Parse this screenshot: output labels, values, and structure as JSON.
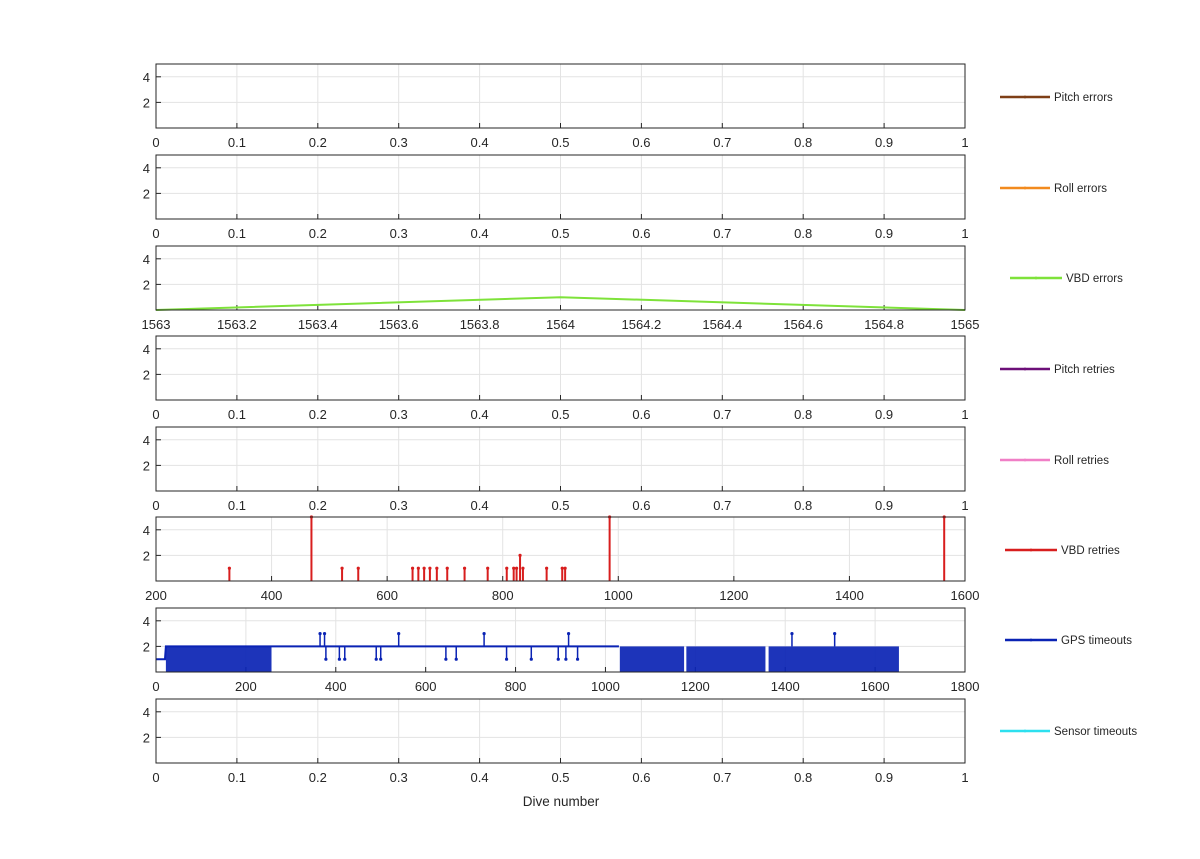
{
  "figure": {
    "xlabel": "Dive number",
    "y_ticks": [
      2,
      4
    ]
  },
  "chart_data": [
    {
      "type": "line",
      "legend": "Pitch errors",
      "color": "#7e3f17",
      "xlim": [
        0,
        1
      ],
      "x_ticks": [
        "0",
        "0.1",
        "0.2",
        "0.3",
        "0.4",
        "0.5",
        "0.6",
        "0.7",
        "0.8",
        "0.9",
        "1"
      ],
      "ylim": [
        0,
        5
      ],
      "y_ticks": [
        "2",
        "4"
      ],
      "series": []
    },
    {
      "type": "line",
      "legend": "Roll errors",
      "color": "#f28a1e",
      "xlim": [
        0,
        1
      ],
      "x_ticks": [
        "0",
        "0.1",
        "0.2",
        "0.3",
        "0.4",
        "0.5",
        "0.6",
        "0.7",
        "0.8",
        "0.9",
        "1"
      ],
      "ylim": [
        0,
        5
      ],
      "y_ticks": [
        "2",
        "4"
      ],
      "series": []
    },
    {
      "type": "line",
      "legend": "VBD errors",
      "color": "#7ee23a",
      "xlim": [
        1563,
        1565
      ],
      "x_ticks": [
        "1563",
        "1563.2",
        "1563.4",
        "1563.6",
        "1563.8",
        "1564",
        "1564.2",
        "1564.4",
        "1564.6",
        "1564.8",
        "1565"
      ],
      "ylim": [
        0,
        5
      ],
      "y_ticks": [
        "2",
        "4"
      ],
      "series": [
        {
          "x": [
            1563,
            1564,
            1565
          ],
          "y": [
            0,
            1,
            0
          ]
        }
      ]
    },
    {
      "type": "line",
      "legend": "Pitch retries",
      "color": "#6c0f78",
      "xlim": [
        0,
        1
      ],
      "x_ticks": [
        "0",
        "0.1",
        "0.2",
        "0.3",
        "0.4",
        "0.5",
        "0.6",
        "0.7",
        "0.8",
        "0.9",
        "1"
      ],
      "ylim": [
        0,
        5
      ],
      "y_ticks": [
        "2",
        "4"
      ],
      "series": []
    },
    {
      "type": "line",
      "legend": "Roll retries",
      "color": "#f07fc6",
      "xlim": [
        0,
        1
      ],
      "x_ticks": [
        "0",
        "0.1",
        "0.2",
        "0.3",
        "0.4",
        "0.5",
        "0.6",
        "0.7",
        "0.8",
        "0.9",
        "1"
      ],
      "ylim": [
        0,
        5
      ],
      "y_ticks": [
        "2",
        "4"
      ],
      "series": []
    },
    {
      "type": "line",
      "legend": "VBD retries",
      "color": "#d81e1e",
      "xlim": [
        200,
        1600
      ],
      "x_ticks": [
        "200",
        "400",
        "600",
        "800",
        "1000",
        "1200",
        "1400",
        "1600"
      ],
      "ylim": [
        0,
        5
      ],
      "y_ticks": [
        "2",
        "4"
      ],
      "baseline": 0,
      "spikes": [
        [
          327,
          1
        ],
        [
          469,
          5
        ],
        [
          522,
          1
        ],
        [
          550,
          1
        ],
        [
          644,
          1
        ],
        [
          654,
          1
        ],
        [
          664,
          1
        ],
        [
          674,
          1
        ],
        [
          686,
          1
        ],
        [
          704,
          1
        ],
        [
          734,
          1
        ],
        [
          774,
          1
        ],
        [
          807,
          1
        ],
        [
          819,
          1
        ],
        [
          824,
          1
        ],
        [
          830,
          2
        ],
        [
          835,
          1
        ],
        [
          876,
          1
        ],
        [
          903,
          1
        ],
        [
          908,
          1
        ],
        [
          985,
          5
        ],
        [
          1564,
          5
        ]
      ]
    },
    {
      "type": "line",
      "legend": "GPS timeouts",
      "color": "#0a23b4",
      "xlim": [
        0,
        1800
      ],
      "x_ticks": [
        "0",
        "200",
        "400",
        "600",
        "800",
        "1000",
        "1200",
        "1400",
        "1600",
        "1800"
      ],
      "ylim": [
        0,
        5
      ],
      "y_ticks": [
        "2",
        "4"
      ],
      "dense_segments": [
        {
          "x": [
            22,
            257
          ],
          "low": 0,
          "high": 2
        },
        {
          "x": [
            1032,
            1175
          ],
          "low": 0,
          "high": 2
        },
        {
          "x": [
            1180,
            1356
          ],
          "low": 0,
          "high": 2
        },
        {
          "x": [
            1363,
            1653
          ],
          "low": 0,
          "high": 2
        }
      ],
      "series": [
        {
          "x": [
            0,
            20,
            22,
            257,
            260,
            1030
          ],
          "y": [
            1,
            1,
            2,
            2,
            2,
            2
          ]
        }
      ],
      "spikes_up": [
        [
          365,
          3
        ],
        [
          375,
          3
        ],
        [
          540,
          3
        ],
        [
          730,
          3
        ],
        [
          918,
          3
        ],
        [
          1415,
          3
        ],
        [
          1510,
          3
        ]
      ],
      "spikes_down": [
        [
          378,
          1
        ],
        [
          408,
          1
        ],
        [
          420,
          1
        ],
        [
          490,
          1
        ],
        [
          500,
          1
        ],
        [
          645,
          1
        ],
        [
          668,
          1
        ],
        [
          780,
          1
        ],
        [
          835,
          1
        ],
        [
          895,
          1
        ],
        [
          912,
          1
        ],
        [
          938,
          1
        ]
      ]
    },
    {
      "type": "line",
      "legend": "Sensor timeouts",
      "color": "#2de0ef",
      "xlim": [
        0,
        1
      ],
      "x_ticks": [
        "0",
        "0.1",
        "0.2",
        "0.3",
        "0.4",
        "0.5",
        "0.6",
        "0.7",
        "0.8",
        "0.9",
        "1"
      ],
      "ylim": [
        0,
        5
      ],
      "y_ticks": [
        "2",
        "4"
      ],
      "series": []
    }
  ]
}
